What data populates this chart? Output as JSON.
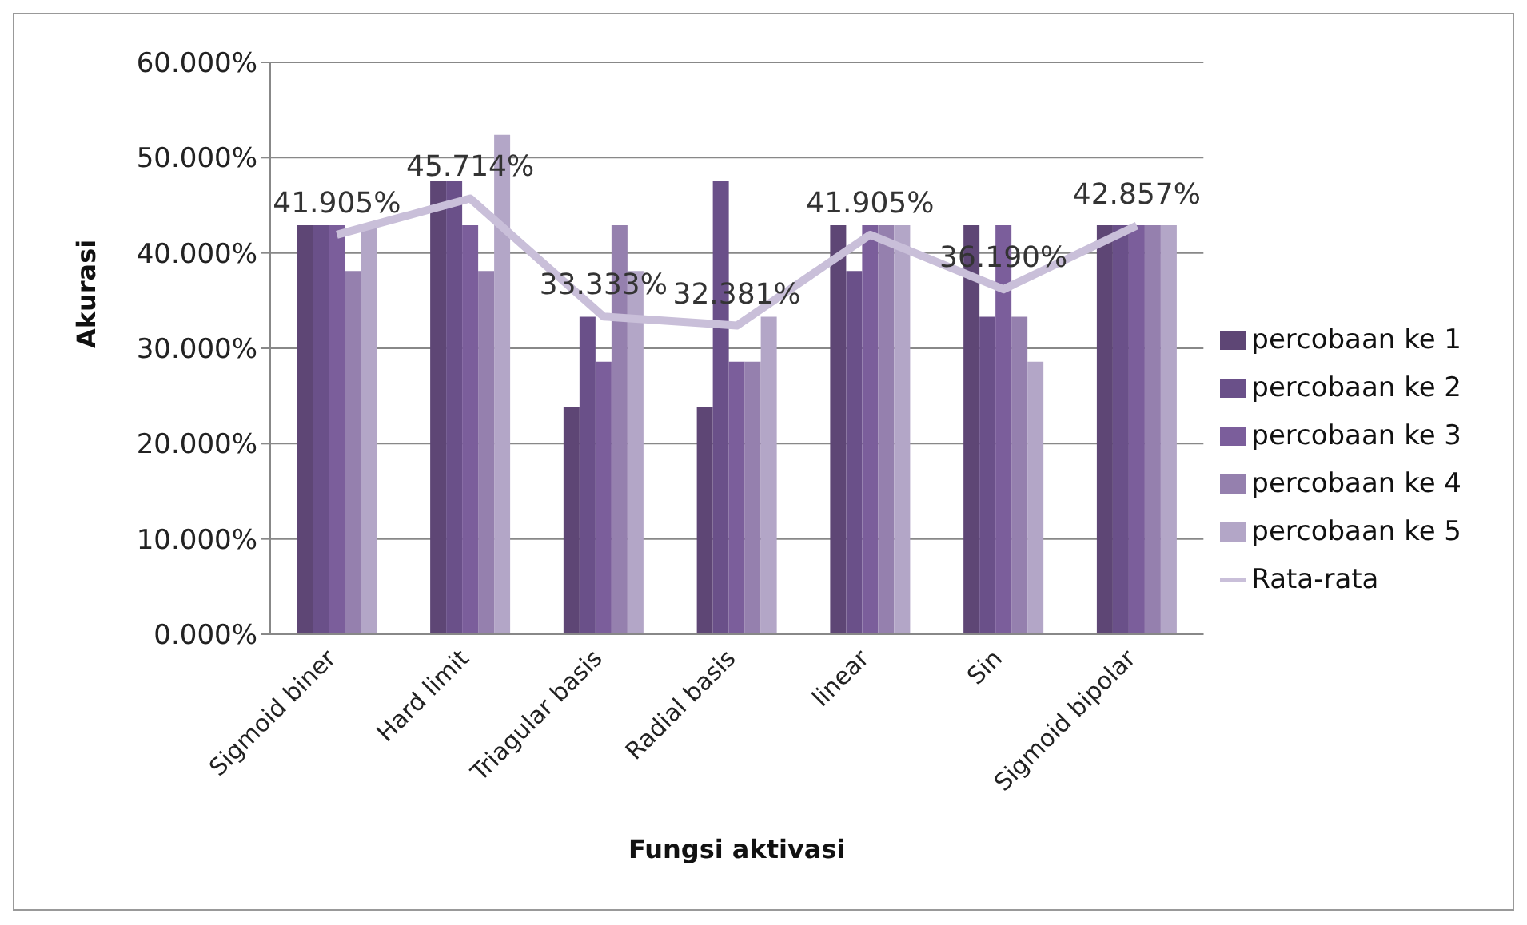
{
  "chart_data": {
    "type": "bar",
    "xlabel": "Fungsi aktivasi",
    "ylabel": "Akurasi",
    "categories": [
      "Sigmoid biner",
      "Hard limit",
      "Triagular basis",
      "Radial basis",
      "linear",
      "Sin",
      "Sigmoid bipolar"
    ],
    "series": [
      {
        "name": "percobaan ke 1",
        "color": "#5e4675",
        "values": [
          42.9,
          47.6,
          23.8,
          23.8,
          42.9,
          42.9,
          42.9
        ]
      },
      {
        "name": "percobaan ke 2",
        "color": "#6a5089",
        "values": [
          42.9,
          47.6,
          33.3,
          47.6,
          38.1,
          33.3,
          42.9
        ]
      },
      {
        "name": "percobaan ke 3",
        "color": "#7b5e9b",
        "values": [
          42.9,
          42.9,
          28.6,
          28.6,
          42.9,
          42.9,
          42.9
        ]
      },
      {
        "name": "percobaan ke 4",
        "color": "#9580ae",
        "values": [
          38.1,
          38.1,
          42.9,
          28.6,
          42.9,
          33.3,
          42.9
        ]
      },
      {
        "name": "percobaan ke 5",
        "color": "#b3a6c7",
        "values": [
          42.9,
          52.4,
          38.1,
          33.3,
          42.9,
          28.6,
          42.9
        ]
      },
      {
        "name": "Rata-rata",
        "type": "line",
        "color": "#c9bfd9",
        "values": [
          41.905,
          45.714,
          33.333,
          32.381,
          41.905,
          36.19,
          42.857
        ],
        "value_labels": [
          "41.905%",
          "45.714%",
          "33.333%",
          "32.381%",
          "41.905%",
          "36.190%",
          "42.857%"
        ]
      }
    ],
    "ylim": [
      0,
      60
    ],
    "yticks": [
      {
        "value": 0,
        "label": "0.000%"
      },
      {
        "value": 10,
        "label": "10.000%"
      },
      {
        "value": 20,
        "label": "20.000%"
      },
      {
        "value": 30,
        "label": "30.000%"
      },
      {
        "value": 40,
        "label": "40.000%"
      },
      {
        "value": 50,
        "label": "50.000%"
      },
      {
        "value": 60,
        "label": "60.000%"
      }
    ],
    "grid": "y",
    "legend": "right",
    "marker": "none"
  }
}
